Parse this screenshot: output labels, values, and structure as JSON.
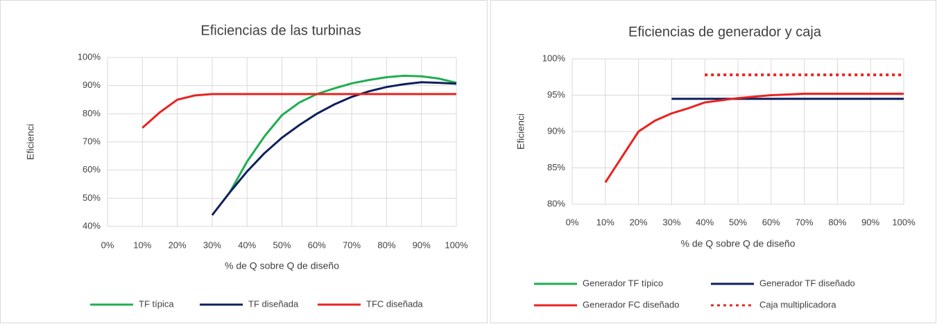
{
  "chart_data": [
    {
      "type": "line",
      "title": "Eficiencias de las turbinas",
      "ylabel": "Eficienci",
      "xlabel": "% de Q sobre Q de diseño",
      "x": [
        10,
        15,
        20,
        25,
        30,
        35,
        40,
        45,
        50,
        55,
        60,
        65,
        70,
        75,
        80,
        85,
        90,
        95,
        100
      ],
      "series": [
        {
          "name": "TF típica",
          "color": "#1fae52",
          "values": [
            null,
            null,
            null,
            null,
            null,
            52,
            63,
            72,
            79.5,
            84,
            87,
            89,
            90.8,
            92,
            93,
            93.5,
            93.3,
            92.5,
            91
          ]
        },
        {
          "name": "TF diseñada",
          "color": "#0d1f5c",
          "values": [
            null,
            null,
            null,
            null,
            44,
            52,
            59.5,
            66,
            71.5,
            76,
            80,
            83.3,
            86,
            88,
            89.5,
            90.5,
            91.2,
            91,
            90.7
          ]
        },
        {
          "name": "TFC diseñada",
          "color": "#e8231f",
          "values": [
            75,
            80.5,
            85,
            86.5,
            87,
            87,
            87,
            87,
            87,
            87,
            87,
            87,
            87,
            87,
            87,
            87,
            87,
            87,
            87
          ]
        }
      ],
      "xlim": [
        0,
        100
      ],
      "xticks": [
        {
          "value": 0,
          "label": "0%"
        },
        {
          "value": 10,
          "label": "10%"
        },
        {
          "value": 20,
          "label": "20%"
        },
        {
          "value": 30,
          "label": "30%"
        },
        {
          "value": 40,
          "label": "40%"
        },
        {
          "value": 50,
          "label": "50%"
        },
        {
          "value": 60,
          "label": "60%"
        },
        {
          "value": 70,
          "label": "70%"
        },
        {
          "value": 80,
          "label": "80%"
        },
        {
          "value": 90,
          "label": "90%"
        },
        {
          "value": 100,
          "label": "100%"
        }
      ],
      "ylim": [
        40,
        100
      ],
      "yticks": [
        {
          "value": 40,
          "label": "40%"
        },
        {
          "value": 50,
          "label": "50%"
        },
        {
          "value": 60,
          "label": "60%"
        },
        {
          "value": 70,
          "label": "70%"
        },
        {
          "value": 80,
          "label": "80%"
        },
        {
          "value": 90,
          "label": "90%"
        },
        {
          "value": 100,
          "label": "100%"
        }
      ],
      "grid": true,
      "legend": "bottom"
    },
    {
      "type": "line",
      "title": "Eficiencias de generador y caja",
      "ylabel": "Eficienci",
      "xlabel": "% de Q sobre Q de diseño",
      "x": [
        10,
        15,
        20,
        25,
        30,
        35,
        40,
        45,
        50,
        55,
        60,
        65,
        70,
        75,
        80,
        85,
        90,
        95,
        100
      ],
      "series": [
        {
          "name": "Generador TF típico",
          "color": "#1fae52",
          "values": [
            null,
            null,
            null,
            null,
            null,
            null,
            null,
            null,
            null,
            null,
            null,
            null,
            null,
            null,
            null,
            null,
            null,
            null,
            null
          ]
        },
        {
          "name": "Generador TF diseñado",
          "color": "#0d1f5c",
          "values": [
            null,
            null,
            null,
            null,
            94.5,
            94.5,
            94.5,
            94.5,
            94.5,
            94.5,
            94.5,
            94.5,
            94.5,
            94.5,
            94.5,
            94.5,
            94.5,
            94.5,
            94.5
          ]
        },
        {
          "name": "Generador FC diseñado",
          "color": "#e8231f",
          "values": [
            83,
            86.5,
            90,
            91.5,
            92.5,
            93.2,
            94,
            94.3,
            94.6,
            94.8,
            95,
            95.1,
            95.2,
            95.2,
            95.2,
            95.2,
            95.2,
            95.2,
            95.2
          ]
        },
        {
          "name": "Caja multiplicadora",
          "color": "#e8231f",
          "style": "dotted",
          "values": [
            null,
            null,
            null,
            null,
            null,
            null,
            97.8,
            97.8,
            97.8,
            97.8,
            97.8,
            97.8,
            97.8,
            97.8,
            97.8,
            97.8,
            97.8,
            97.8,
            97.8
          ]
        }
      ],
      "xlim": [
        0,
        100
      ],
      "xticks": [
        {
          "value": 0,
          "label": "0%"
        },
        {
          "value": 10,
          "label": "10%"
        },
        {
          "value": 20,
          "label": "20%"
        },
        {
          "value": 30,
          "label": "30%"
        },
        {
          "value": 40,
          "label": "40%"
        },
        {
          "value": 50,
          "label": "50%"
        },
        {
          "value": 60,
          "label": "60%"
        },
        {
          "value": 70,
          "label": "70%"
        },
        {
          "value": 80,
          "label": "80%"
        },
        {
          "value": 90,
          "label": "90%"
        },
        {
          "value": 100,
          "label": "100%"
        }
      ],
      "ylim": [
        80,
        100
      ],
      "yticks": [
        {
          "value": 80,
          "label": "80%"
        },
        {
          "value": 85,
          "label": "85%"
        },
        {
          "value": 90,
          "label": "90%"
        },
        {
          "value": 95,
          "label": "95%"
        },
        {
          "value": 100,
          "label": "100%"
        }
      ],
      "grid": true,
      "legend": "bottom"
    }
  ]
}
